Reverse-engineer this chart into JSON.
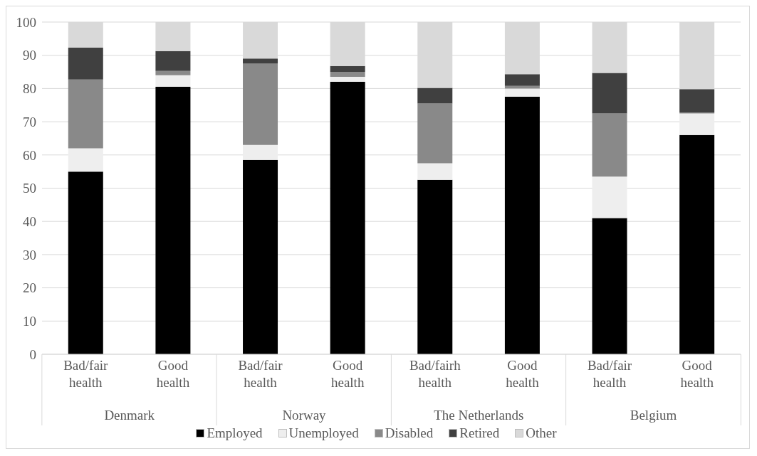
{
  "chart_data": {
    "type": "bar",
    "stacked": true,
    "categories": [
      "Bad/fair health",
      "Good health",
      "Bad/fair health",
      "Good health",
      "Bad/fairh health",
      "Good health",
      "Bad/fair health",
      "Good health"
    ],
    "annotations": [
      "Denmark",
      "Norway",
      "The Netherlands",
      "Belgium"
    ],
    "series": [
      {
        "name": "Employed",
        "color": "#000000",
        "values": [
          55,
          80.5,
          58.5,
          82,
          52.5,
          77.5,
          41,
          66
        ]
      },
      {
        "name": "Unemployed",
        "color": "#eeeeee",
        "values": [
          7,
          3.5,
          4.5,
          1.5,
          5,
          2.5,
          12.5,
          6.5
        ]
      },
      {
        "name": "Disabled",
        "color": "#898989",
        "values": [
          20.7,
          1.3,
          24.5,
          1.5,
          18,
          0.8,
          19,
          0.3
        ]
      },
      {
        "name": "Retired",
        "color": "#404040",
        "values": [
          9.6,
          6,
          1.5,
          1.8,
          4.7,
          3.5,
          12.2,
          7
        ]
      },
      {
        "name": "Other",
        "color": "#d9d9d9",
        "values": [
          7.7,
          8.7,
          11,
          13.2,
          19.8,
          15.7,
          15.3,
          20.2
        ]
      }
    ],
    "ylim": [
      0,
      100
    ],
    "yticks": [
      0,
      10,
      20,
      30,
      40,
      50,
      60,
      70,
      80,
      90,
      100
    ],
    "grid": "y",
    "legend": "bottom"
  }
}
